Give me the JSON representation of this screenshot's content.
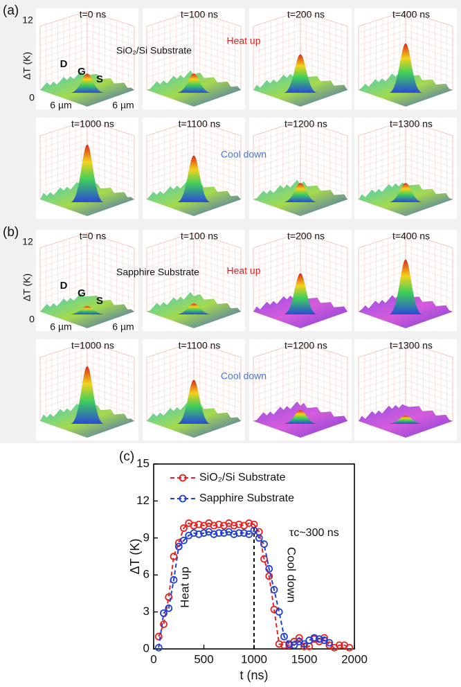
{
  "panels": [
    {
      "label": "(a)",
      "substrate": "SiO₂/Si Substrate",
      "heat": "Heat up",
      "cool": "Cool down",
      "z_label": "ΔT (K)",
      "zlim": [
        0,
        12
      ],
      "x_label": "6 µm",
      "y_label": "6 µm",
      "terminals": [
        "D",
        "G",
        "S"
      ],
      "tiles": [
        {
          "time": "t=0 ns",
          "peak": 3
        },
        {
          "time": "t=100 ns",
          "peak": 3
        },
        {
          "time": "t=200 ns",
          "peak": 6.5
        },
        {
          "time": "t=400 ns",
          "peak": 8.5
        },
        {
          "time": "t=1000 ns",
          "peak": 10
        },
        {
          "time": "t=1100 ns",
          "peak": 8
        },
        {
          "time": "t=1200 ns",
          "peak": 3
        },
        {
          "time": "t=1300 ns",
          "peak": 3
        }
      ]
    },
    {
      "label": "(b)",
      "substrate": "Sapphire Substrate",
      "heat": "Heat up",
      "cool": "Cool down",
      "z_label": "ΔT (K)",
      "zlim": [
        0,
        12
      ],
      "x_label": "6 µm",
      "y_label": "6 µm",
      "terminals": [
        "D",
        "G",
        "S"
      ],
      "tiles": [
        {
          "time": "t=0 ns",
          "peak": 1
        },
        {
          "time": "t=100 ns",
          "peak": 1.5
        },
        {
          "time": "t=200 ns",
          "peak": 7
        },
        {
          "time": "t=400 ns",
          "peak": 9.5
        },
        {
          "time": "t=1000 ns",
          "peak": 10
        },
        {
          "time": "t=1100 ns",
          "peak": 7.5
        },
        {
          "time": "t=1200 ns",
          "peak": 2
        },
        {
          "time": "t=1300 ns",
          "peak": 1
        }
      ]
    }
  ],
  "chart_data": {
    "type": "line",
    "label": "(c)",
    "x_label": "t (ns)",
    "y_label": "ΔT (K)",
    "xlim": [
      0,
      2000
    ],
    "xticks": [
      0,
      500,
      1000,
      1500,
      2000
    ],
    "ylim": [
      0,
      15
    ],
    "yticks": [
      0,
      3,
      6,
      9,
      12,
      15
    ],
    "vline": 1000,
    "annotations": {
      "heat": "Heat up",
      "cool": "Cool down",
      "tau": "τc~300 ns"
    },
    "series": [
      {
        "name": "SiO₂/Si Substrate",
        "color": "#e8201e",
        "x": [
          50,
          100,
          150,
          200,
          250,
          300,
          350,
          400,
          450,
          500,
          550,
          600,
          650,
          700,
          750,
          800,
          850,
          900,
          950,
          1000,
          1050,
          1100,
          1150,
          1200,
          1250,
          1300,
          1350,
          1400,
          1450,
          1500,
          1550,
          1600,
          1650,
          1700,
          1750,
          1800,
          1850,
          1900,
          1950
        ],
        "values": [
          1.0,
          2.0,
          4.2,
          7.5,
          8.6,
          9.8,
          10.2,
          10.0,
          10.1,
          10.0,
          10.2,
          10.0,
          10.1,
          10.0,
          10.2,
          10.0,
          10.1,
          10.0,
          10.2,
          10.1,
          9.5,
          7.3,
          5.9,
          3.2,
          0.4,
          0.3,
          0.3,
          0.6,
          0.9,
          0.2,
          0.2,
          0.8,
          0.6,
          0.9,
          0.3,
          0.1,
          0.3,
          0.3,
          0.1
        ]
      },
      {
        "name": "Sapphire Substrate",
        "color": "#1f3fd6",
        "x": [
          50,
          100,
          150,
          200,
          250,
          300,
          350,
          400,
          450,
          500,
          550,
          600,
          650,
          700,
          750,
          800,
          850,
          900,
          950,
          1000,
          1050,
          1100,
          1150,
          1200,
          1250,
          1300,
          1350,
          1400,
          1450,
          1500,
          1550,
          1600,
          1650,
          1700,
          1750
        ],
        "values": [
          0.1,
          2.9,
          3.3,
          5.6,
          8.3,
          8.8,
          9.2,
          9.4,
          9.3,
          9.4,
          9.5,
          9.3,
          9.4,
          9.4,
          9.5,
          9.3,
          9.4,
          9.4,
          9.3,
          9.6,
          9.0,
          8.5,
          6.5,
          4.8,
          3.0,
          1.0,
          0.4,
          0.3,
          0.6,
          0.4,
          0.7,
          0.9,
          0.8,
          0.7,
          0.5
        ]
      }
    ]
  }
}
